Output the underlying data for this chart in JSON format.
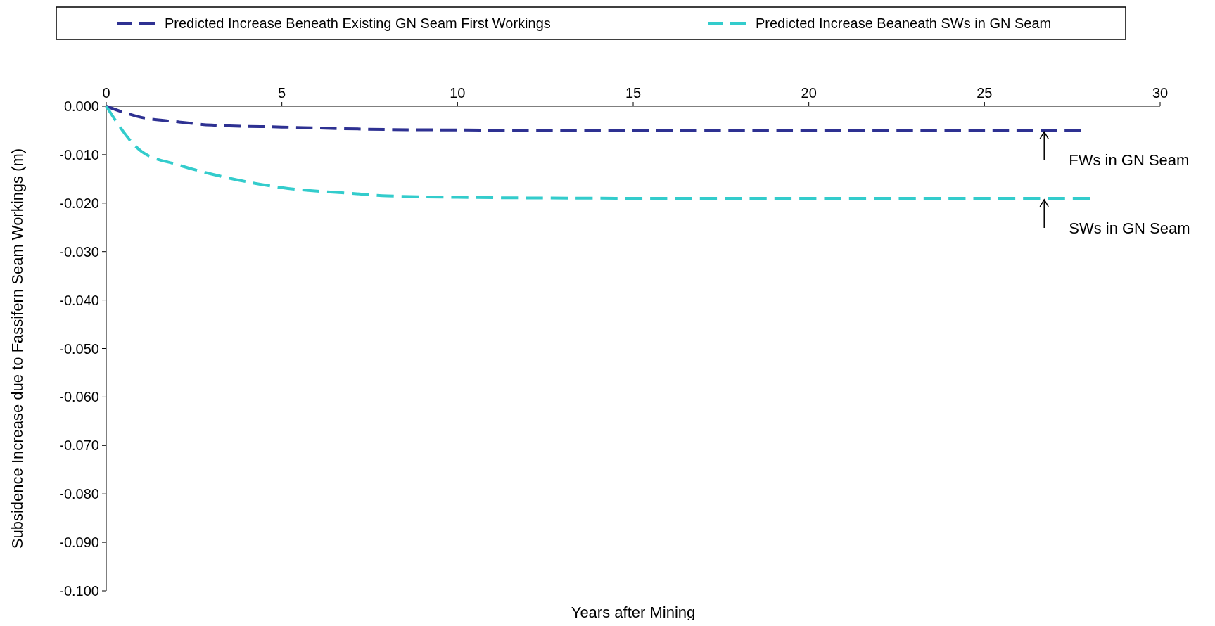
{
  "chart_data": {
    "type": "line",
    "xlabel": "Years after Mining",
    "ylabel": "Subsidence Increase due to Fassifern Seam Workings (m)",
    "xlim": [
      0,
      30
    ],
    "xticks": [
      0,
      5,
      10,
      15,
      20,
      25,
      30
    ],
    "ylim": [
      -0.1,
      0
    ],
    "yticks": [
      {
        "value": 0,
        "label": "0.000"
      },
      {
        "value": -0.01,
        "label": "-0.010"
      },
      {
        "value": -0.02,
        "label": "-0.020"
      },
      {
        "value": -0.03,
        "label": "-0.030"
      },
      {
        "value": -0.04,
        "label": "-0.040"
      },
      {
        "value": -0.05,
        "label": "-0.050"
      },
      {
        "value": -0.06,
        "label": "-0.060"
      },
      {
        "value": -0.07,
        "label": "-0.070"
      },
      {
        "value": -0.08,
        "label": "-0.080"
      },
      {
        "value": -0.09,
        "label": "-0.090"
      },
      {
        "value": -0.1,
        "label": "-0.100"
      }
    ],
    "x": [
      0,
      1,
      2,
      3,
      5,
      8,
      10,
      15,
      20,
      25,
      27.75
    ],
    "series": [
      {
        "name": "Predicted Increase Beneath Existing GN Seam First Workings",
        "color": "#2e3192",
        "values": [
          0,
          -0.0023,
          -0.0032,
          -0.0039,
          -0.0043,
          -0.0048,
          -0.0049,
          -0.005,
          -0.005,
          -0.005,
          -0.005
        ]
      },
      {
        "name": "Predicted Increase Beaneath SWs in GN Seam",
        "color": "#33cccc",
        "x": [
          0,
          1,
          2,
          3,
          4,
          5,
          7,
          8,
          10,
          15,
          20,
          25,
          28
        ],
        "values": [
          0,
          -0.0093,
          -0.012,
          -0.014,
          -0.0156,
          -0.0168,
          -0.018,
          -0.0185,
          -0.0188,
          -0.019,
          -0.019,
          -0.019,
          -0.019
        ]
      }
    ],
    "line_style": "dashed",
    "legend": "top",
    "grid": false,
    "annotations": [
      {
        "text": "FWs in GN Seam",
        "x": 26.7,
        "y": -0.005
      },
      {
        "text": "SWs in GN Seam",
        "x": 26.7,
        "y": -0.019
      }
    ]
  }
}
